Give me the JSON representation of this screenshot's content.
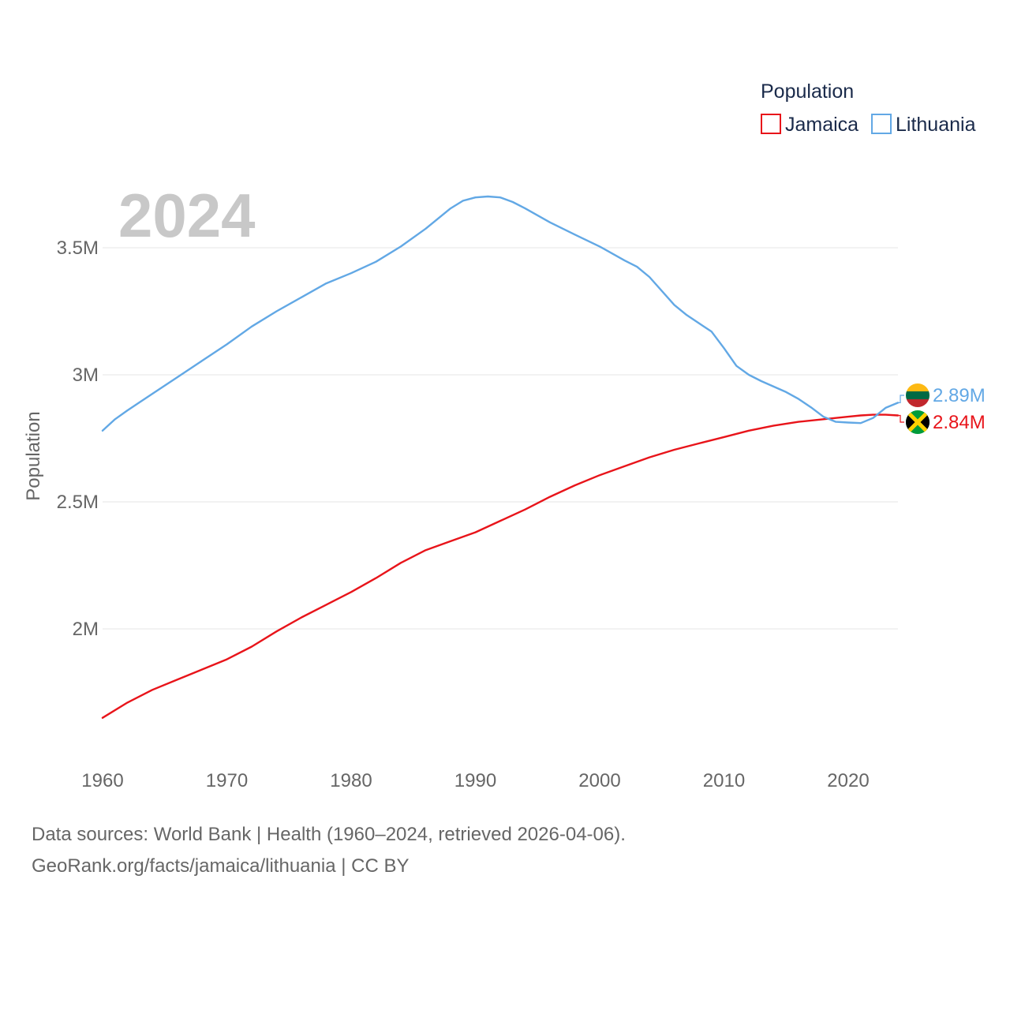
{
  "chart_data": {
    "type": "line",
    "title": "",
    "year_label": "2024",
    "xlabel": "",
    "ylabel": "Population",
    "xlim": [
      1960,
      2024
    ],
    "ylim": [
      1600000,
      3800000
    ],
    "x_ticks": [
      1960,
      1970,
      1980,
      1990,
      2000,
      2010,
      2020
    ],
    "x_tick_labels": [
      "1960",
      "1970",
      "1980",
      "1990",
      "2000",
      "2010",
      "2020"
    ],
    "y_ticks": [
      2000000,
      2500000,
      3000000,
      3500000
    ],
    "y_tick_labels": [
      "2M",
      "2.5M",
      "3M",
      "3.5M"
    ],
    "grid": true,
    "legend": {
      "title": "Population",
      "placement": "top-right",
      "entries": [
        "Jamaica",
        "Lithuania"
      ]
    },
    "series": [
      {
        "name": "Jamaica",
        "color": "#e8141a",
        "end_label": "2.84M",
        "flag": "jamaica-flag",
        "x": [
          1960,
          1962,
          1964,
          1966,
          1968,
          1970,
          1972,
          1974,
          1976,
          1978,
          1980,
          1982,
          1984,
          1986,
          1988,
          1990,
          1992,
          1994,
          1996,
          1998,
          2000,
          2002,
          2004,
          2006,
          2008,
          2010,
          2012,
          2014,
          2016,
          2018,
          2020,
          2021,
          2022,
          2023,
          2024
        ],
        "y": [
          1650000,
          1710000,
          1760000,
          1800000,
          1840000,
          1880000,
          1930000,
          1990000,
          2045000,
          2095000,
          2145000,
          2200000,
          2260000,
          2310000,
          2345000,
          2380000,
          2425000,
          2470000,
          2520000,
          2565000,
          2605000,
          2640000,
          2675000,
          2705000,
          2730000,
          2755000,
          2780000,
          2800000,
          2815000,
          2825000,
          2835000,
          2840000,
          2843000,
          2843000,
          2840000
        ]
      },
      {
        "name": "Lithuania",
        "color": "#62a8e5",
        "end_label": "2.89M",
        "flag": "lithuania-flag",
        "x": [
          1960,
          1961,
          1962,
          1964,
          1966,
          1968,
          1970,
          1972,
          1974,
          1976,
          1978,
          1980,
          1982,
          1984,
          1986,
          1988,
          1989,
          1990,
          1991,
          1992,
          1993,
          1994,
          1996,
          1998,
          2000,
          2002,
          2003,
          2004,
          2006,
          2007,
          2009,
          2010,
          2011,
          2012,
          2013,
          2015,
          2016,
          2017,
          2018,
          2019,
          2020,
          2021,
          2022,
          2023,
          2024
        ],
        "y": [
          2780000,
          2825000,
          2860000,
          2925000,
          2990000,
          3055000,
          3120000,
          3190000,
          3250000,
          3305000,
          3360000,
          3400000,
          3445000,
          3505000,
          3575000,
          3655000,
          3685000,
          3698000,
          3702000,
          3698000,
          3680000,
          3655000,
          3600000,
          3552000,
          3505000,
          3450000,
          3425000,
          3385000,
          3275000,
          3235000,
          3170000,
          3105000,
          3035000,
          3000000,
          2975000,
          2932000,
          2905000,
          2872000,
          2835000,
          2815000,
          2812000,
          2810000,
          2830000,
          2870000,
          2890000
        ]
      }
    ]
  },
  "footer": {
    "line1": "Data sources: World Bank | Health (1960–2024, retrieved 2026-04-06).",
    "line2": "GeoRank.org/facts/jamaica/lithuania | CC BY"
  }
}
